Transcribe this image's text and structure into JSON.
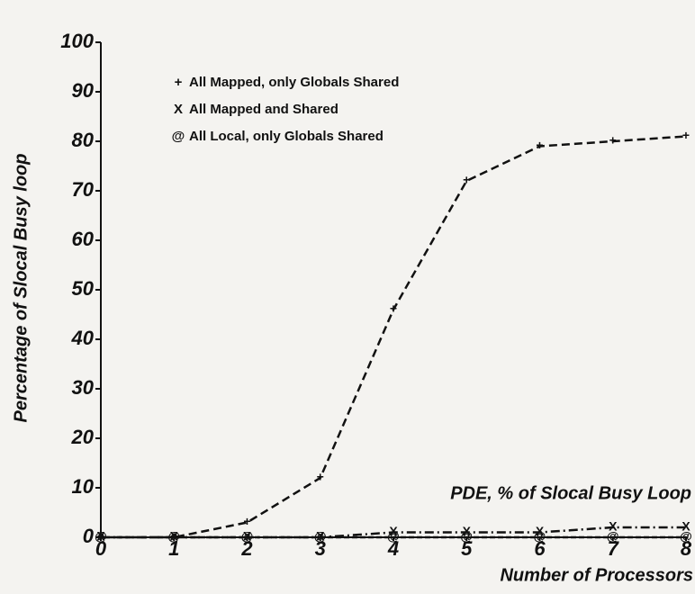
{
  "chart_data": {
    "type": "line",
    "y_label": "Percentage of Slocal Busy loop",
    "x_label": "Number of Processors",
    "annotation": "PDE, % of Slocal Busy Loop",
    "x": [
      0,
      1,
      2,
      3,
      4,
      5,
      6,
      7,
      8
    ],
    "xlim": [
      0,
      8
    ],
    "xticks": [
      0,
      1,
      2,
      3,
      4,
      5,
      6,
      7,
      8
    ],
    "ylim": [
      0,
      100
    ],
    "yticks": [
      0,
      10,
      20,
      30,
      40,
      50,
      60,
      70,
      80,
      90,
      100
    ],
    "grid": false,
    "series": [
      {
        "name": "All Mapped, only Globals Shared",
        "marker": "+",
        "color": "#111111",
        "values": [
          0,
          0,
          3,
          12,
          46,
          72,
          79,
          80,
          81
        ]
      },
      {
        "name": "All Mapped and Shared",
        "marker": "X",
        "color": "#111111",
        "values": [
          0,
          0,
          0,
          0,
          1,
          1,
          1,
          2,
          2
        ]
      },
      {
        "name": "All Local, only Globals Shared",
        "marker": "@",
        "color": "#111111",
        "values": [
          0,
          0,
          0,
          0,
          0,
          0,
          0,
          0,
          0
        ]
      }
    ]
  }
}
